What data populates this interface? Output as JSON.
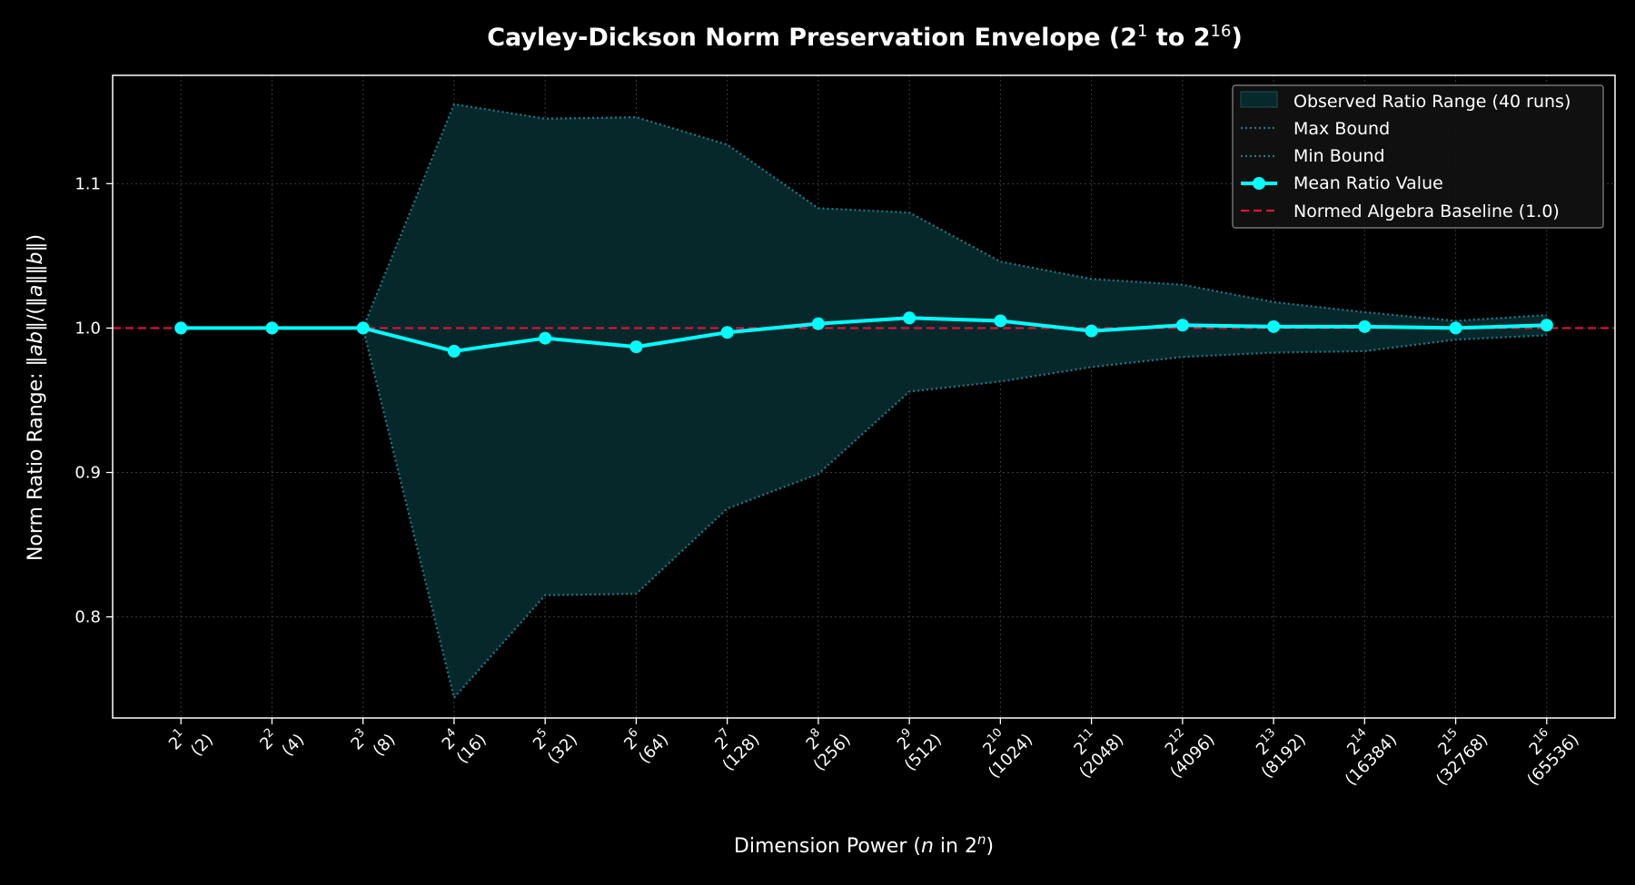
{
  "chart_data": {
    "type": "line",
    "title": "Cayley-Dickson Norm Preservation Envelope (2¹ to 2¹⁶)",
    "xlabel": "Dimension Power (n in 2ⁿ)",
    "ylabel": "Norm Ratio Range: ‖ab‖/(‖a‖‖b‖)",
    "ylim": [
      0.73,
      1.175
    ],
    "yticks": [
      0.8,
      0.9,
      1.0,
      1.1
    ],
    "ytick_labels": [
      "0.8",
      "0.9",
      "1.0",
      "1.1"
    ],
    "x": [
      1,
      2,
      3,
      4,
      5,
      6,
      7,
      8,
      9,
      10,
      11,
      12,
      13,
      14,
      15,
      16
    ],
    "xtick_labels": [
      {
        "power": "1",
        "dim": "(2)"
      },
      {
        "power": "2",
        "dim": "(4)"
      },
      {
        "power": "3",
        "dim": "(8)"
      },
      {
        "power": "4",
        "dim": "(16)"
      },
      {
        "power": "5",
        "dim": "(32)"
      },
      {
        "power": "6",
        "dim": "(64)"
      },
      {
        "power": "7",
        "dim": "(128)"
      },
      {
        "power": "8",
        "dim": "(256)"
      },
      {
        "power": "9",
        "dim": "(512)"
      },
      {
        "power": "10",
        "dim": "(1024)"
      },
      {
        "power": "11",
        "dim": "(2048)"
      },
      {
        "power": "12",
        "dim": "(4096)"
      },
      {
        "power": "13",
        "dim": "(8192)"
      },
      {
        "power": "14",
        "dim": "(16384)"
      },
      {
        "power": "15",
        "dim": "(32768)"
      },
      {
        "power": "16",
        "dim": "(65536)"
      }
    ],
    "series": [
      {
        "name": "Max Bound",
        "style": "dotted",
        "color": "#1f7a8c",
        "values": [
          1.0,
          1.0,
          1.0,
          1.155,
          1.145,
          1.146,
          1.127,
          1.083,
          1.08,
          1.046,
          1.034,
          1.03,
          1.018,
          1.011,
          1.005,
          1.009
        ]
      },
      {
        "name": "Min Bound",
        "style": "dotted",
        "color": "#1f7a8c",
        "values": [
          1.0,
          1.0,
          1.0,
          0.744,
          0.815,
          0.816,
          0.875,
          0.899,
          0.956,
          0.963,
          0.973,
          0.98,
          0.983,
          0.984,
          0.992,
          0.995
        ]
      },
      {
        "name": "Mean Ratio Value",
        "style": "solid-markers",
        "color": "#00ffff",
        "values": [
          1.0,
          1.0,
          1.0,
          0.984,
          0.993,
          0.987,
          0.997,
          1.003,
          1.007,
          1.005,
          0.998,
          1.002,
          1.001,
          1.001,
          1.0,
          1.002
        ]
      }
    ],
    "band": {
      "name": "Observed Ratio Range (40 runs)",
      "color": "#062a2c"
    },
    "baseline": {
      "name": "Normed Algebra Baseline (1.0)",
      "value": 1.0,
      "color": "#dc143c"
    },
    "legend_position": "top-right",
    "grid": true
  }
}
